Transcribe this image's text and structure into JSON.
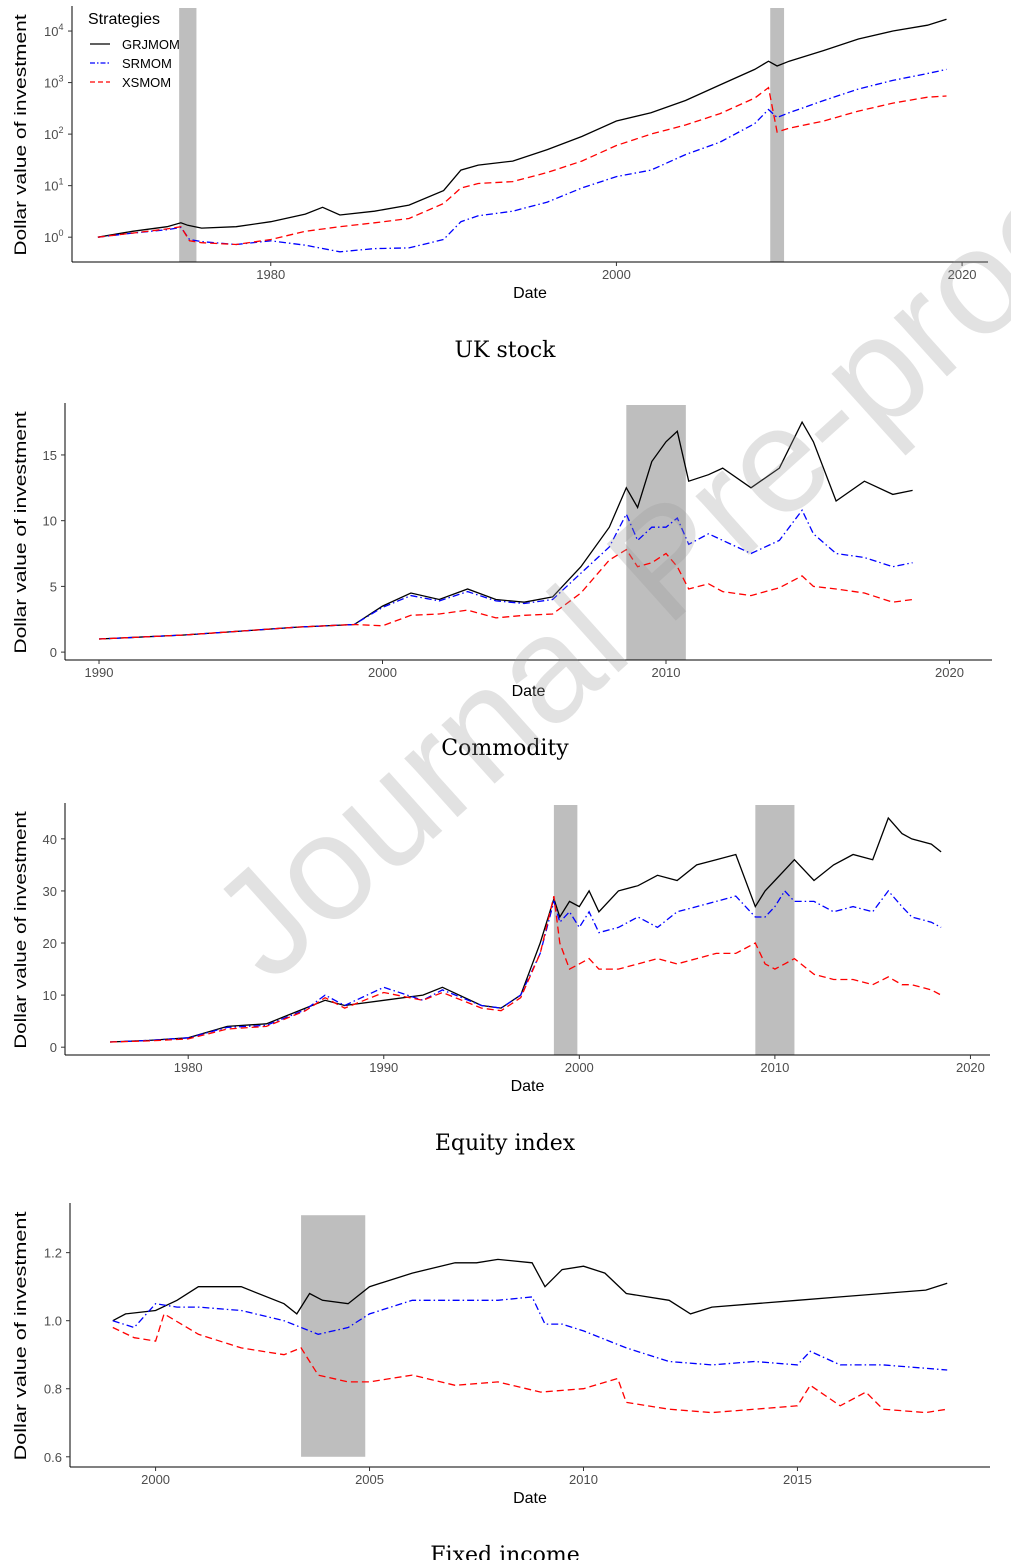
{
  "watermark": "Journal Pre-proof",
  "chart_data": [
    {
      "type": "line",
      "caption": "UK stock",
      "xlabel": "Date",
      "ylabel": "Dollar value of investment",
      "yscale": "log",
      "xlim": [
        1968.5,
        2021.5
      ],
      "ylim": [
        0.33,
        28000
      ],
      "x_ticks": [
        1980,
        2000,
        2020
      ],
      "y_ticks": [
        {
          "value": 1,
          "base": "10",
          "exp": "0"
        },
        {
          "value": 10,
          "base": "10",
          "exp": "1"
        },
        {
          "value": 100,
          "base": "10",
          "exp": "2"
        },
        {
          "value": 1000,
          "base": "10",
          "exp": "3"
        },
        {
          "value": 10000,
          "base": "10",
          "exp": "4"
        }
      ],
      "legend": {
        "title": "Strategies",
        "position": "top-left",
        "entries": [
          "GRJMOM",
          "SRMOM",
          "XSMOM"
        ]
      },
      "shaded_periods": [
        [
          1974.7,
          1975.7
        ],
        [
          2008.9,
          2009.7
        ]
      ],
      "series": [
        {
          "name": "GRJMOM",
          "color": "#000000",
          "dash": "solid",
          "x": [
            1970,
            1972,
            1974,
            1974.8,
            1975.2,
            1976,
            1978,
            1980,
            1982,
            1983,
            1984,
            1986,
            1988,
            1990,
            1991,
            1992,
            1994,
            1996,
            1998,
            2000,
            2002,
            2004,
            2006,
            2008,
            2008.8,
            2009.3,
            2010,
            2012,
            2014,
            2016,
            2018,
            2019.1
          ],
          "y": [
            1.0,
            1.3,
            1.6,
            1.9,
            1.7,
            1.5,
            1.6,
            2.0,
            2.8,
            3.8,
            2.7,
            3.2,
            4.2,
            8,
            20,
            25,
            30,
            50,
            90,
            180,
            260,
            450,
            900,
            1800,
            2600,
            2100,
            2600,
            4200,
            7000,
            10000,
            13000,
            17000
          ]
        },
        {
          "name": "SRMOM",
          "color": "#0000ff",
          "dash": "dashdot",
          "x": [
            1970,
            1972,
            1974,
            1974.8,
            1975.3,
            1976,
            1978,
            1980,
            1982,
            1984,
            1986,
            1988,
            1990,
            1991,
            1992,
            1994,
            1996,
            1998,
            2000,
            2002,
            2004,
            2006,
            2008,
            2008.8,
            2009.3,
            2010,
            2012,
            2014,
            2016,
            2018,
            2019.1
          ],
          "y": [
            1.0,
            1.2,
            1.4,
            1.55,
            0.9,
            0.82,
            0.72,
            0.85,
            0.7,
            0.52,
            0.6,
            0.62,
            0.9,
            2.0,
            2.6,
            3.2,
            4.8,
            9,
            15,
            20,
            40,
            70,
            160,
            300,
            210,
            260,
            450,
            750,
            1100,
            1500,
            1800
          ]
        },
        {
          "name": "XSMOM",
          "color": "#ff0000",
          "dash": "dashed",
          "x": [
            1970,
            1972,
            1974,
            1974.8,
            1975.3,
            1976,
            1978,
            1980,
            1982,
            1984,
            1986,
            1988,
            1990,
            1991,
            1992,
            1994,
            1996,
            1998,
            2000,
            2002,
            2004,
            2006,
            2008,
            2008.8,
            2009.3,
            2010,
            2012,
            2014,
            2016,
            2018,
            2019.1
          ],
          "y": [
            1.0,
            1.2,
            1.45,
            1.6,
            0.85,
            0.78,
            0.72,
            0.9,
            1.3,
            1.6,
            1.9,
            2.3,
            4.5,
            9,
            11,
            12,
            18,
            30,
            60,
            100,
            150,
            250,
            500,
            800,
            110,
            130,
            180,
            280,
            400,
            520,
            550
          ]
        }
      ]
    },
    {
      "type": "line",
      "caption": "Commodity",
      "xlabel": "Date",
      "ylabel": "Dollar value of investment",
      "yscale": "linear",
      "xlim": [
        1988.8,
        2021.5
      ],
      "ylim": [
        -0.6,
        18.8
      ],
      "x_ticks": [
        1990,
        2000,
        2010,
        2020
      ],
      "y_ticks": [
        0,
        5,
        10,
        15
      ],
      "shaded_periods": [
        [
          2008.6,
          2010.7
        ]
      ],
      "series": [
        {
          "name": "GRJMOM",
          "color": "#000000",
          "dash": "solid",
          "x": [
            1990,
            1991,
            1993,
            1995,
            1997,
            1999,
            2000,
            2001,
            2002,
            2003,
            2004,
            2005,
            2006,
            2007,
            2008,
            2008.6,
            2009,
            2009.5,
            2010,
            2010.4,
            2010.8,
            2011.5,
            2012,
            2013,
            2014,
            2014.8,
            2015.2,
            2016,
            2017,
            2018,
            2018.7
          ],
          "y": [
            1.0,
            1.1,
            1.3,
            1.6,
            1.9,
            2.1,
            3.5,
            4.5,
            4.0,
            4.8,
            4.0,
            3.8,
            4.2,
            6.5,
            9.5,
            12.5,
            11.0,
            14.5,
            16.0,
            16.8,
            13.0,
            13.5,
            14.0,
            12.5,
            14.0,
            17.5,
            16.0,
            11.5,
            13.0,
            12.0,
            12.3
          ]
        },
        {
          "name": "SRMOM",
          "color": "#0000ff",
          "dash": "dashdot",
          "x": [
            1990,
            1991,
            1993,
            1995,
            1997,
            1999,
            2000,
            2001,
            2002,
            2003,
            2004,
            2005,
            2006,
            2007,
            2008,
            2008.6,
            2009,
            2009.5,
            2010,
            2010.4,
            2010.8,
            2011.5,
            2012,
            2013,
            2014,
            2014.8,
            2015.2,
            2016,
            2017,
            2018,
            2018.7
          ],
          "y": [
            1.0,
            1.1,
            1.3,
            1.6,
            1.9,
            2.1,
            3.4,
            4.3,
            3.9,
            4.6,
            3.9,
            3.7,
            4.0,
            6.0,
            8.0,
            10.5,
            8.5,
            9.5,
            9.5,
            10.2,
            8.2,
            9.0,
            8.5,
            7.5,
            8.5,
            10.8,
            9.0,
            7.5,
            7.2,
            6.5,
            6.8
          ]
        },
        {
          "name": "XSMOM",
          "color": "#ff0000",
          "dash": "dashed",
          "x": [
            1990,
            1991,
            1993,
            1995,
            1997,
            1999,
            2000,
            2001,
            2002,
            2003,
            2004,
            2005,
            2006,
            2007,
            2008,
            2008.6,
            2009,
            2009.5,
            2010,
            2010.4,
            2010.8,
            2011.5,
            2012,
            2013,
            2014,
            2014.8,
            2015.2,
            2016,
            2017,
            2018,
            2018.7
          ],
          "y": [
            1.0,
            1.1,
            1.3,
            1.6,
            1.9,
            2.1,
            2.0,
            2.8,
            2.9,
            3.2,
            2.6,
            2.8,
            2.9,
            4.5,
            7.0,
            7.8,
            6.5,
            6.8,
            7.5,
            6.5,
            4.8,
            5.2,
            4.6,
            4.3,
            4.9,
            5.8,
            5.0,
            4.8,
            4.5,
            3.8,
            4.0
          ]
        }
      ]
    },
    {
      "type": "line",
      "caption": "Equity index",
      "xlabel": "Date",
      "ylabel": "Dollar value of investment",
      "yscale": "linear",
      "xlim": [
        1973.7,
        2021.0
      ],
      "ylim": [
        -1.5,
        46.5
      ],
      "x_ticks": [
        1980,
        1990,
        2000,
        2010,
        2020
      ],
      "y_ticks": [
        0,
        10,
        20,
        30,
        40
      ],
      "shaded_periods": [
        [
          1998.7,
          1999.9
        ],
        [
          2009.0,
          2011.0
        ]
      ],
      "series": [
        {
          "name": "GRJMOM",
          "color": "#000000",
          "dash": "solid",
          "x": [
            1976,
            1978,
            1980,
            1982,
            1984,
            1986,
            1987,
            1988,
            1990,
            1992,
            1993,
            1995,
            1996,
            1997,
            1998,
            1998.7,
            1999,
            1999.5,
            2000,
            2000.5,
            2001,
            2002,
            2003,
            2004,
            2005,
            2006,
            2007,
            2008,
            2009,
            2009.5,
            2010,
            2010.5,
            2011,
            2012,
            2013,
            2014,
            2015,
            2015.8,
            2016.5,
            2017,
            2018,
            2018.5
          ],
          "y": [
            1.0,
            1.3,
            1.8,
            4.0,
            4.5,
            7.5,
            9.0,
            8.0,
            9.0,
            10.0,
            11.5,
            8.0,
            7.5,
            10.0,
            20,
            28.5,
            25,
            28,
            27,
            30,
            26,
            30,
            31,
            33,
            32,
            35,
            36,
            37,
            27,
            30,
            32,
            34,
            36,
            32,
            35,
            37,
            36,
            44,
            41,
            40,
            39,
            37.5
          ]
        },
        {
          "name": "SRMOM",
          "color": "#0000ff",
          "dash": "dashdot",
          "x": [
            1976,
            1978,
            1980,
            1982,
            1984,
            1986,
            1987,
            1988,
            1990,
            1992,
            1993,
            1995,
            1996,
            1997,
            1998,
            1998.7,
            1999,
            1999.5,
            2000,
            2000.5,
            2001,
            2002,
            2003,
            2004,
            2005,
            2006,
            2007,
            2008,
            2009,
            2009.5,
            2010,
            2010.5,
            2011,
            2012,
            2013,
            2014,
            2015,
            2015.8,
            2016.5,
            2017,
            2018,
            2018.5
          ],
          "y": [
            1.0,
            1.3,
            1.8,
            3.8,
            4.2,
            7.2,
            10.0,
            8.0,
            11.5,
            9.0,
            11.0,
            8.0,
            7.5,
            10.0,
            18,
            28,
            24,
            26,
            23,
            26,
            22,
            23,
            25,
            23,
            26,
            27,
            28,
            29,
            25,
            25,
            27,
            30,
            28,
            28,
            26,
            27,
            26,
            30,
            27,
            25,
            24,
            23
          ]
        },
        {
          "name": "XSMOM",
          "color": "#ff0000",
          "dash": "dashed",
          "x": [
            1976,
            1978,
            1980,
            1982,
            1984,
            1986,
            1987,
            1988,
            1990,
            1992,
            1993,
            1995,
            1996,
            1997,
            1998,
            1998.7,
            1999,
            1999.5,
            2000,
            2000.5,
            2001,
            2002,
            2003,
            2004,
            2005,
            2006,
            2007,
            2008,
            2009,
            2009.5,
            2010,
            2010.5,
            2011,
            2012,
            2013,
            2014,
            2015,
            2015.8,
            2016.5,
            2017,
            2018,
            2018.5
          ],
          "y": [
            1.0,
            1.2,
            1.6,
            3.5,
            4.0,
            7.0,
            9.5,
            7.5,
            10.5,
            9.0,
            10.5,
            7.5,
            7.0,
            9.5,
            18,
            29,
            20,
            15,
            16,
            17,
            15,
            15,
            16,
            17,
            16,
            17,
            18,
            18,
            20,
            16,
            15,
            16,
            17,
            14,
            13,
            13,
            12,
            13.5,
            12,
            12,
            11,
            10
          ]
        }
      ]
    },
    {
      "type": "line",
      "caption": "Fixed income",
      "xlabel": "Date",
      "ylabel": "Dollar value of investment",
      "yscale": "linear",
      "xlim": [
        1998.0,
        2019.5
      ],
      "ylim": [
        0.57,
        1.34
      ],
      "x_ticks": [
        2000,
        2005,
        2010,
        2015
      ],
      "y_ticks": [
        0.6,
        0.8,
        1.0,
        1.2
      ],
      "shaded_periods": [
        [
          2003.4,
          2004.9
        ]
      ],
      "series": [
        {
          "name": "GRJMOM",
          "color": "#000000",
          "dash": "solid",
          "x": [
            1999,
            1999.3,
            2000,
            2000.5,
            2001,
            2002,
            2003,
            2003.3,
            2003.6,
            2003.9,
            2004.5,
            2005,
            2006,
            2007,
            2007.5,
            2008,
            2008.8,
            2009.1,
            2009.5,
            2010,
            2010.5,
            2011,
            2012,
            2012.5,
            2013,
            2014,
            2015,
            2016,
            2017,
            2018,
            2018.5
          ],
          "y": [
            1.0,
            1.02,
            1.03,
            1.06,
            1.1,
            1.1,
            1.05,
            1.02,
            1.08,
            1.06,
            1.05,
            1.1,
            1.14,
            1.17,
            1.17,
            1.18,
            1.17,
            1.1,
            1.15,
            1.16,
            1.14,
            1.08,
            1.06,
            1.02,
            1.04,
            1.05,
            1.06,
            1.07,
            1.08,
            1.09,
            1.11
          ]
        },
        {
          "name": "SRMOM",
          "color": "#0000ff",
          "dash": "dashdot",
          "x": [
            1999,
            1999.5,
            2000,
            2000.5,
            2001,
            2002,
            2003,
            2003.4,
            2003.8,
            2004.5,
            2005,
            2006,
            2007,
            2008,
            2008.8,
            2009.1,
            2009.5,
            2010,
            2011,
            2012,
            2013,
            2014,
            2015,
            2015.3,
            2016,
            2017,
            2018,
            2018.5
          ],
          "y": [
            1.0,
            0.98,
            1.05,
            1.04,
            1.04,
            1.03,
            1.0,
            0.98,
            0.96,
            0.98,
            1.02,
            1.06,
            1.06,
            1.06,
            1.07,
            0.99,
            0.99,
            0.97,
            0.92,
            0.88,
            0.87,
            0.88,
            0.87,
            0.91,
            0.87,
            0.87,
            0.86,
            0.855
          ]
        },
        {
          "name": "XSMOM",
          "color": "#ff0000",
          "dash": "dashed",
          "x": [
            1999,
            1999.5,
            2000,
            2000.2,
            2001,
            2002,
            2003,
            2003.4,
            2003.8,
            2004.5,
            2005,
            2006,
            2007,
            2008,
            2009,
            2010,
            2010.8,
            2011,
            2012,
            2013,
            2014,
            2015,
            2015.3,
            2016,
            2016.6,
            2017,
            2018,
            2018.5
          ],
          "y": [
            0.98,
            0.95,
            0.94,
            1.02,
            0.96,
            0.92,
            0.9,
            0.92,
            0.84,
            0.82,
            0.82,
            0.84,
            0.81,
            0.82,
            0.79,
            0.8,
            0.83,
            0.76,
            0.74,
            0.73,
            0.74,
            0.75,
            0.81,
            0.75,
            0.79,
            0.74,
            0.73,
            0.74
          ]
        }
      ]
    }
  ]
}
